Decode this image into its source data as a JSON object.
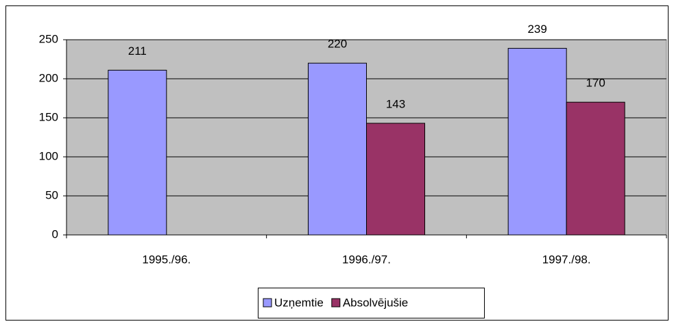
{
  "chart_data": {
    "type": "bar",
    "categories": [
      "1995./96.",
      "1996./97.",
      "1997./98."
    ],
    "series": [
      {
        "name": "Uzņemtie",
        "color": "#9999ff",
        "values": [
          211,
          220,
          239
        ]
      },
      {
        "name": "Absolvējušie",
        "color": "#993366",
        "values": [
          null,
          143,
          170
        ]
      }
    ],
    "ylim": [
      0,
      250
    ],
    "yticks": [
      0,
      50,
      100,
      150,
      200,
      250
    ],
    "grid": true,
    "legend": "bottom"
  }
}
